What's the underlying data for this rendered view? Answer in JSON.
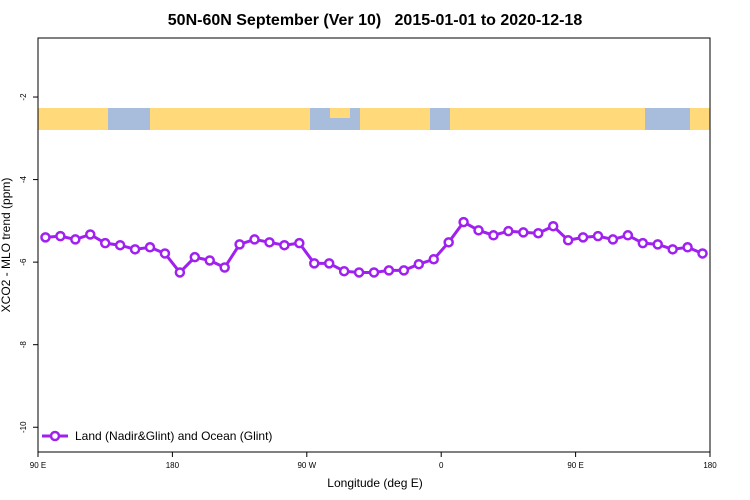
{
  "chart_data": {
    "type": "line",
    "title": "50N-60N September (Ver 10)   2015-01-01 to 2020-12-18",
    "xlabel": "Longitude (deg E)",
    "ylabel": "XCO2 - MLO trend (ppm)",
    "x": [
      95,
      105,
      115,
      125,
      135,
      145,
      155,
      165,
      175,
      185,
      195,
      205,
      215,
      225,
      235,
      245,
      255,
      265,
      275,
      285,
      295,
      305,
      315,
      325,
      335,
      345,
      355,
      365,
      375,
      385,
      395,
      405,
      415,
      425,
      435,
      445,
      455,
      465,
      475,
      485,
      495,
      505,
      515,
      525,
      535
    ],
    "series": [
      {
        "name": "Land (Nadir&Glint) and Ocean (Glint)",
        "color": "#a020f0",
        "values": [
          -5.4,
          -5.37,
          -5.45,
          -5.33,
          -5.54,
          -5.59,
          -5.69,
          -5.64,
          -5.79,
          -6.25,
          -5.88,
          -5.96,
          -6.13,
          -5.57,
          -5.45,
          -5.52,
          -5.59,
          -5.54,
          -6.03,
          -6.03,
          -6.22,
          -6.25,
          -6.25,
          -6.2,
          -6.2,
          -6.05,
          -5.93,
          -5.52,
          -5.03,
          -5.23,
          -5.35,
          -5.25,
          -5.28,
          -5.3,
          -5.13,
          -5.47,
          -5.4,
          -5.37,
          -5.45,
          -5.35,
          -5.54,
          -5.57,
          -5.69,
          -5.64,
          -5.79
        ]
      }
    ],
    "xlim": [
      90,
      540
    ],
    "ylim": [
      -10.6,
      -0.57
    ],
    "xticks": [
      {
        "value": 90,
        "label": "90 E"
      },
      {
        "value": 180,
        "label": "180"
      },
      {
        "value": 270,
        "label": "90 W"
      },
      {
        "value": 360,
        "label": "0"
      },
      {
        "value": 450,
        "label": "90 E"
      },
      {
        "value": 540,
        "label": "180"
      }
    ],
    "yticks": [
      -2,
      -4,
      -6,
      -8,
      -10
    ],
    "legend": "bottom-left"
  }
}
